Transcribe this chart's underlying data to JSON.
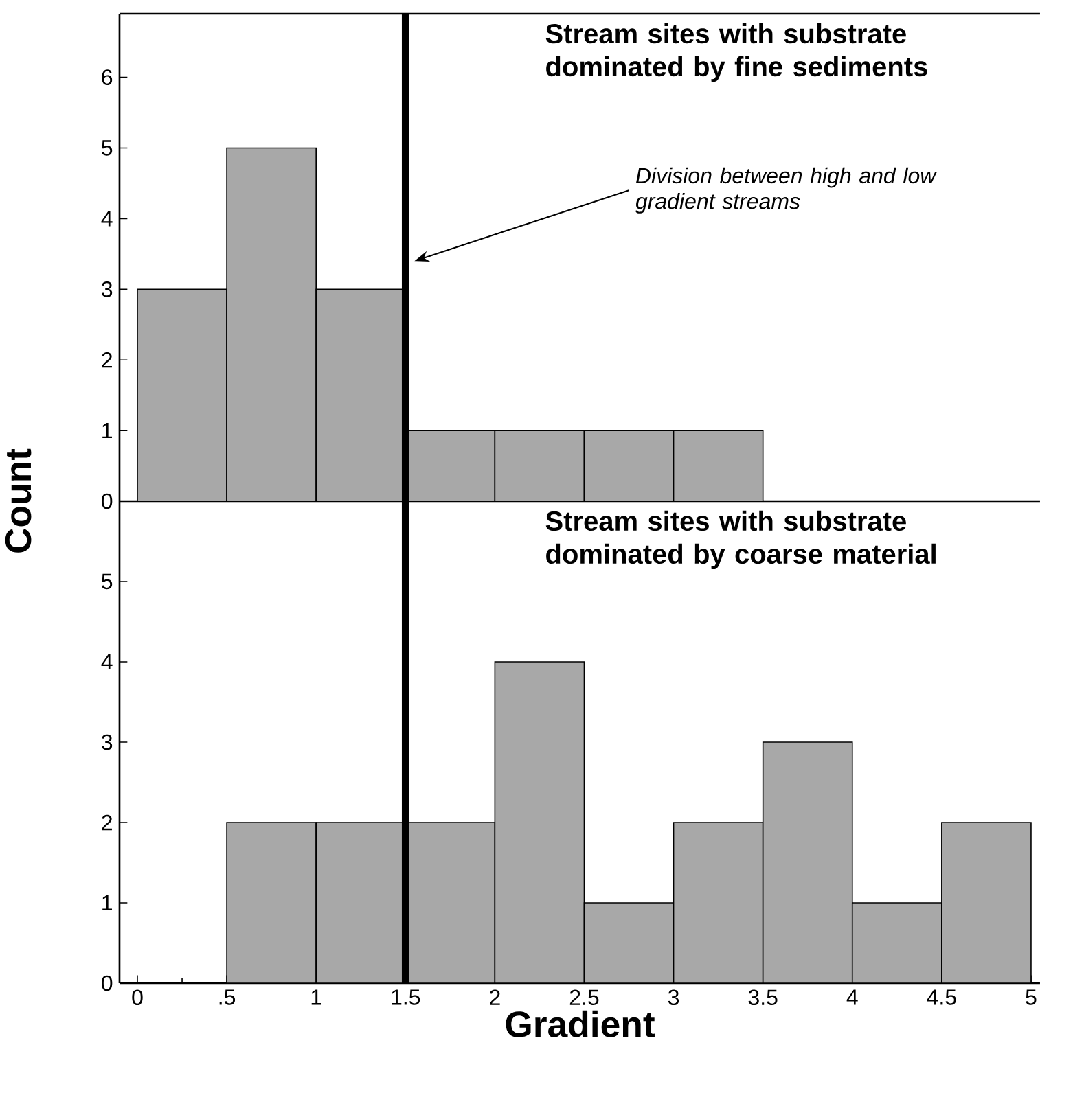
{
  "chart_data": [
    {
      "type": "histogram",
      "title": "Stream sites with substrate dominated by fine sediments",
      "ylabel": "Count",
      "bins": [
        0,
        0.5,
        1,
        1.5,
        2,
        2.5,
        3,
        3.5
      ],
      "values": [
        3,
        5,
        3,
        1,
        1,
        1,
        1
      ],
      "color": "#a8a8a8",
      "xlim": [
        -0.1,
        5.05
      ],
      "ylim": [
        0,
        6.9
      ],
      "yticks": [
        0,
        1,
        2,
        3,
        4,
        5,
        6
      ],
      "tick_labels": "y",
      "ref_lines": [
        {
          "axis": "x",
          "value": 1.5
        }
      ],
      "annotations": [
        {
          "text": "Division between high and low gradient streams",
          "x": 1.55,
          "y": 3.4
        }
      ]
    },
    {
      "type": "histogram",
      "title": "Stream sites with substrate dominated by coarse material",
      "xlabel": "Gradient",
      "bins": [
        0,
        0.5,
        1,
        1.5,
        2,
        2.5,
        3,
        3.5,
        4,
        4.5,
        5
      ],
      "values": [
        0,
        2,
        2,
        2,
        4,
        1,
        2,
        3,
        1,
        2
      ],
      "color": "#a8a8a8",
      "xlim": [
        -0.1,
        5.05
      ],
      "ylim": [
        0,
        6
      ],
      "yticks": [
        0,
        1,
        2,
        3,
        4,
        5
      ],
      "xticks": [
        0,
        {
          "value": 0.5,
          "label": ".5"
        },
        1,
        1.5,
        2,
        2.5,
        3,
        3.5,
        4,
        4.5,
        5
      ],
      "ref_lines": [
        {
          "axis": "x",
          "value": 1.5
        }
      ]
    }
  ]
}
